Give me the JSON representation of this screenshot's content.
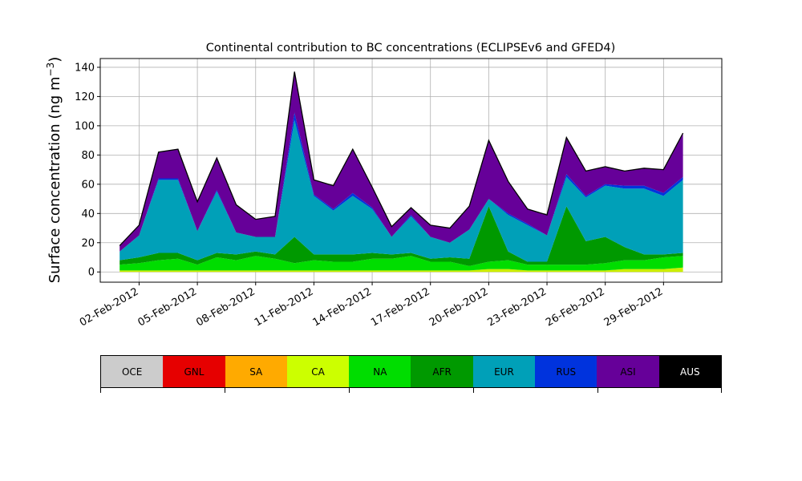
{
  "chart_data": {
    "type": "area",
    "stacked": true,
    "title": "Continental contribution to BC concentrations (ECLIPSEv6 and GFED4)",
    "ylabel": "Surface concentration (ng m",
    "ylabel_exp": "−3",
    "ylabel_close": ")",
    "xlabel": "",
    "ylim": [
      -7,
      146
    ],
    "yticks": [
      0,
      20,
      40,
      60,
      80,
      100,
      120,
      140
    ],
    "xlim": [
      "2012-01-31",
      "2012-03-03"
    ],
    "xticks": [
      {
        "date": "2012-02-02",
        "label": "02-Feb-2012"
      },
      {
        "date": "2012-02-05",
        "label": "05-Feb-2012"
      },
      {
        "date": "2012-02-08",
        "label": "08-Feb-2012"
      },
      {
        "date": "2012-02-11",
        "label": "11-Feb-2012"
      },
      {
        "date": "2012-02-14",
        "label": "14-Feb-2012"
      },
      {
        "date": "2012-02-17",
        "label": "17-Feb-2012"
      },
      {
        "date": "2012-02-20",
        "label": "20-Feb-2012"
      },
      {
        "date": "2012-02-23",
        "label": "23-Feb-2012"
      },
      {
        "date": "2012-02-26",
        "label": "26-Feb-2012"
      },
      {
        "date": "2012-02-29",
        "label": "29-Feb-2012"
      }
    ],
    "grid": true,
    "x": [
      "2012-02-01",
      "2012-02-02",
      "2012-02-03",
      "2012-02-04",
      "2012-02-05",
      "2012-02-06",
      "2012-02-07",
      "2012-02-08",
      "2012-02-09",
      "2012-02-10",
      "2012-02-11",
      "2012-02-12",
      "2012-02-13",
      "2012-02-14",
      "2012-02-15",
      "2012-02-16",
      "2012-02-17",
      "2012-02-18",
      "2012-02-19",
      "2012-02-20",
      "2012-02-21",
      "2012-02-22",
      "2012-02-23",
      "2012-02-24",
      "2012-02-25",
      "2012-02-26",
      "2012-02-27",
      "2012-02-28",
      "2012-02-29",
      "2012-03-01"
    ],
    "series": [
      {
        "name": "CA",
        "color": "#ccee00",
        "values": [
          1,
          1,
          1,
          1,
          1,
          1,
          1,
          1,
          1,
          1,
          1,
          1,
          1,
          1,
          1,
          1,
          1,
          1,
          1,
          2,
          2,
          1,
          1,
          1,
          1,
          1,
          2,
          2,
          2,
          3
        ]
      },
      {
        "name": "NA",
        "color": "#00dd00",
        "values": [
          4,
          5,
          7,
          8,
          4,
          9,
          7,
          10,
          8,
          5,
          7,
          6,
          6,
          8,
          8,
          10,
          6,
          6,
          3,
          5,
          6,
          4,
          4,
          4,
          4,
          5,
          6,
          6,
          8,
          8
        ]
      },
      {
        "name": "AFR",
        "color": "#009900",
        "values": [
          3,
          4,
          5,
          4,
          3,
          3,
          4,
          3,
          3,
          18,
          4,
          5,
          5,
          4,
          3,
          2,
          2,
          3,
          5,
          38,
          6,
          2,
          2,
          40,
          16,
          18,
          9,
          4,
          2,
          2
        ]
      },
      {
        "name": "EUR",
        "color": "#00a0b8",
        "values": [
          6,
          15,
          50,
          50,
          20,
          42,
          15,
          10,
          12,
          80,
          40,
          30,
          40,
          30,
          12,
          25,
          15,
          10,
          20,
          5,
          25,
          25,
          18,
          20,
          30,
          35,
          40,
          45,
          40,
          50
        ]
      },
      {
        "name": "RUS",
        "color": "#0033dd",
        "values": [
          0,
          0,
          1,
          1,
          0,
          1,
          0,
          0,
          0,
          5,
          1,
          1,
          2,
          1,
          0,
          1,
          0,
          0,
          0,
          0,
          1,
          1,
          0,
          2,
          1,
          1,
          2,
          2,
          2,
          2
        ]
      },
      {
        "name": "ASI",
        "color": "#660099",
        "values": [
          4,
          7,
          18,
          20,
          20,
          22,
          19,
          12,
          14,
          28,
          10,
          16,
          30,
          14,
          7,
          5,
          8,
          10,
          16,
          40,
          22,
          10,
          14,
          25,
          17,
          12,
          10,
          12,
          16,
          30
        ]
      }
    ],
    "legend": [
      {
        "label": "OCE",
        "color": "#cccccc"
      },
      {
        "label": "GNL",
        "color": "#e60000"
      },
      {
        "label": "SA",
        "color": "#ffaa00"
      },
      {
        "label": "CA",
        "color": "#ccff00"
      },
      {
        "label": "NA",
        "color": "#00dd00"
      },
      {
        "label": "AFR",
        "color": "#009900"
      },
      {
        "label": "EUR",
        "color": "#00a0b8"
      },
      {
        "label": "RUS",
        "color": "#0033dd"
      },
      {
        "label": "ASI",
        "color": "#660099"
      },
      {
        "label": "AUS",
        "color": "#000000",
        "text_color": "#ffffff"
      }
    ],
    "legend_position": "bottom"
  }
}
